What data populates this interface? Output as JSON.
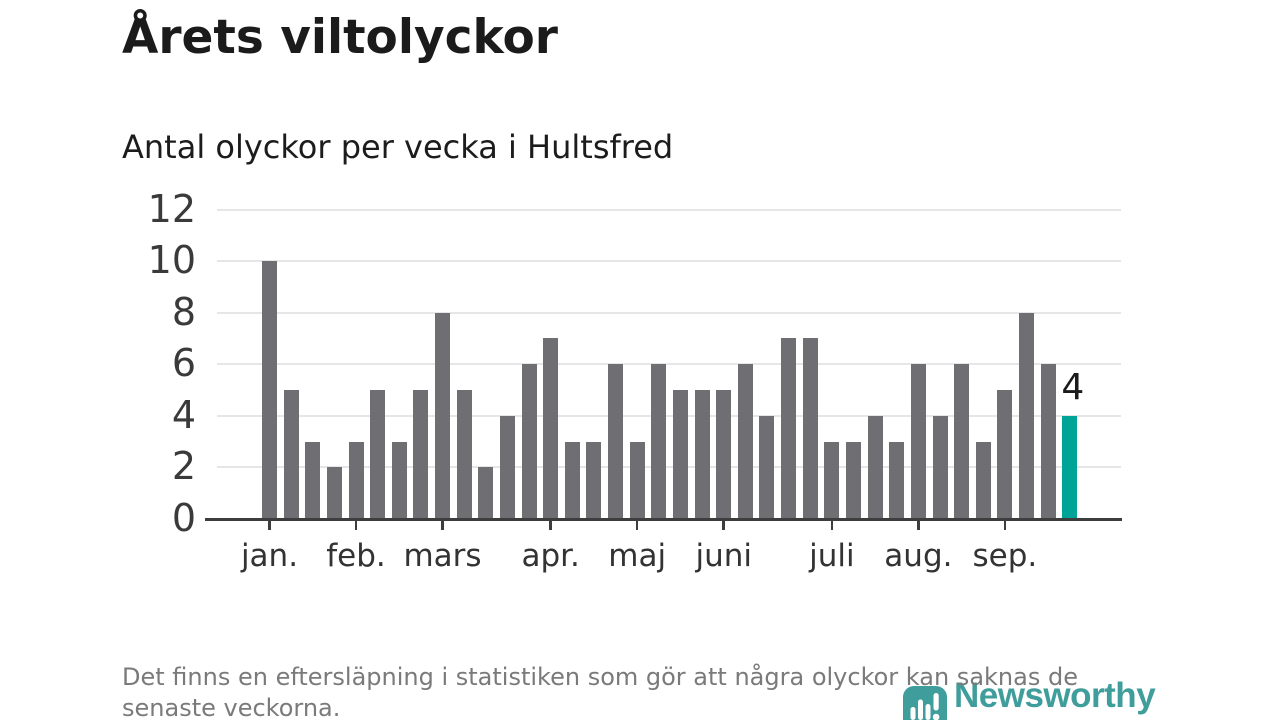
{
  "title": "Årets viltolyckor",
  "subtitle": "Antal olyckor per vecka i Hultsfred",
  "footnote": {
    "lines": [
      "Det finns en eftersläpning i statistiken som gör att några olyckor kan saknas de",
      "senaste veckorna."
    ]
  },
  "branding": {
    "name": "Newsworthy",
    "icon": "newsworthy-pin-barchart-icon"
  },
  "colors": {
    "bar": "#6f6f73",
    "highlight": "#00a497",
    "brand": "#3f9e9b",
    "grid": "#e6e6e6",
    "axis": "#3d3d3d",
    "title_text": "#1b1b1b",
    "y_label_text": "#3a3a3a",
    "x_label_text": "#333333",
    "footnote_text": "#7a7a7a"
  },
  "chart_data": {
    "type": "bar",
    "title": "Årets viltolyckor",
    "subtitle": "Antal olyckor per vecka i Hultsfred",
    "x_unit": "vecka (week of year, 1-38)",
    "values": [
      10,
      5,
      3,
      2,
      3,
      5,
      3,
      5,
      8,
      5,
      2,
      4,
      6,
      7,
      3,
      3,
      6,
      3,
      6,
      5,
      5,
      5,
      6,
      4,
      7,
      7,
      3,
      3,
      4,
      3,
      6,
      4,
      6,
      3,
      5,
      8,
      6,
      4
    ],
    "highlight_last_bar": true,
    "annotation": {
      "label": "4",
      "bar_index": 37
    },
    "y_ticks": [
      0,
      2,
      4,
      6,
      8,
      10,
      12
    ],
    "ylim": [
      0,
      12
    ],
    "x_tick_labels": [
      "jan.",
      "feb.",
      "mars",
      "apr.",
      "maj",
      "juni",
      "juli",
      "aug.",
      "sep."
    ],
    "x_tick_bar_index": [
      0,
      4,
      8,
      13,
      17,
      21,
      26,
      30,
      34
    ],
    "grid": "horizontal-only",
    "legend": "none"
  }
}
